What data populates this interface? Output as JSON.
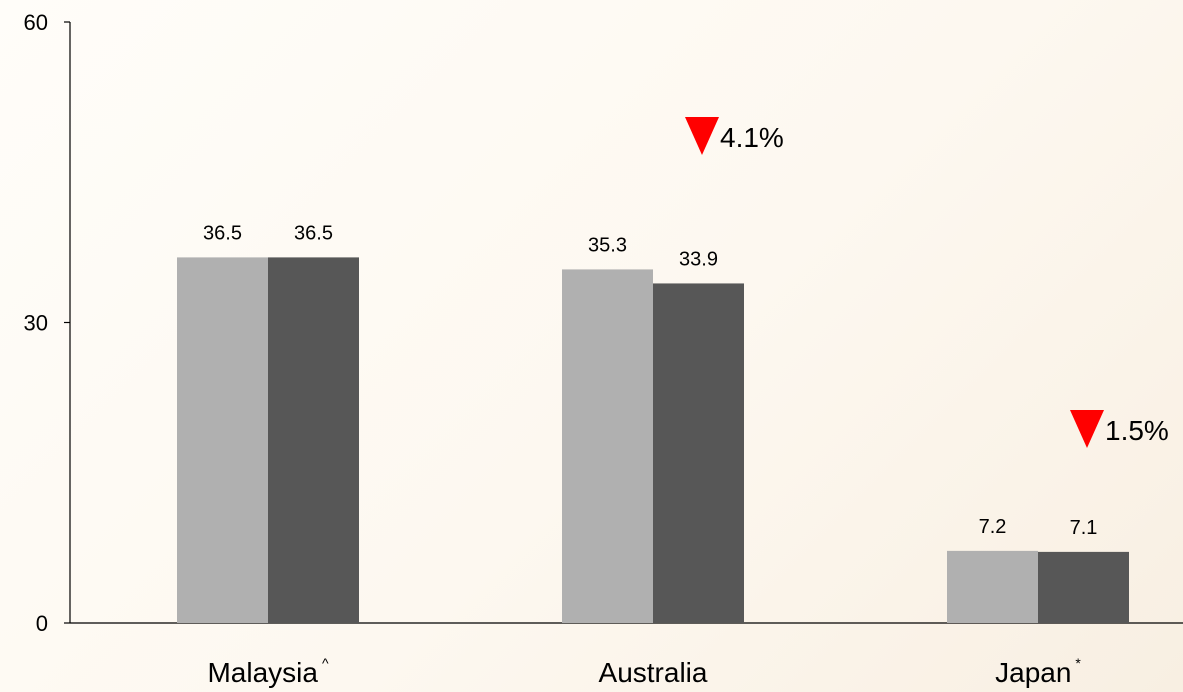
{
  "chart_data": {
    "type": "bar",
    "categories": [
      "Malaysia",
      "Australia",
      "Japan"
    ],
    "category_marks": [
      "^",
      "",
      "*"
    ],
    "series": [
      {
        "values": [
          36.5,
          35.3,
          7.2
        ],
        "color": "#b0b0b0"
      },
      {
        "values": [
          36.5,
          33.9,
          7.1
        ],
        "color": "#575757"
      }
    ],
    "ylim": [
      0,
      60
    ],
    "yticks": [
      "0",
      "30",
      "60"
    ],
    "value_labels": [
      [
        "36.5",
        "36.5"
      ],
      [
        "35.3",
        "33.9"
      ],
      [
        "7.2",
        "7.1"
      ]
    ],
    "change_annotations": [
      {
        "category": "Australia",
        "text": "4.1%",
        "direction": "down",
        "color": "#ff0000"
      },
      {
        "category": "Japan",
        "text": "1.5%",
        "direction": "down",
        "color": "#ff0000"
      }
    ],
    "grid": false,
    "legend": "none"
  }
}
